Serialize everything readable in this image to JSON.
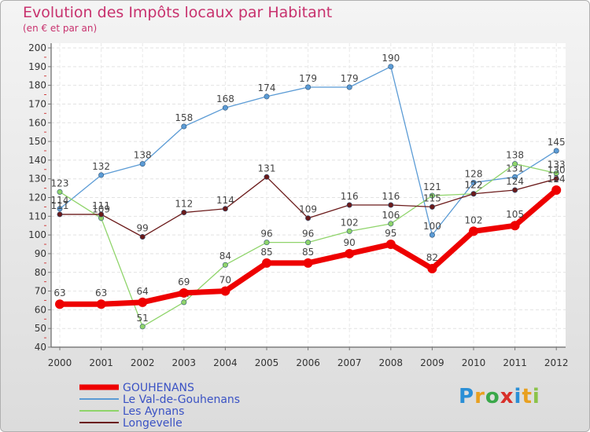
{
  "chart_data": {
    "type": "line",
    "title": "Evolution des Impôts locaux par Habitant",
    "subtitle": "(en € et par an)",
    "xlabel": "",
    "ylabel": "",
    "ylim": [
      40,
      200
    ],
    "ytick_step": 10,
    "categories": [
      "2000",
      "2001",
      "2002",
      "2003",
      "2004",
      "2005",
      "2006",
      "2007",
      "2008",
      "2009",
      "2010",
      "2011",
      "2012"
    ],
    "series": [
      {
        "name": "GOUHENANS",
        "color": "#ee0000",
        "bold": true,
        "values": [
          63,
          63,
          64,
          69,
          70,
          85,
          85,
          90,
          95,
          82,
          102,
          105,
          124
        ]
      },
      {
        "name": "Le Val-de-Gouhenans",
        "color": "#5b9bd5",
        "bold": false,
        "values": [
          114,
          132,
          138,
          158,
          168,
          174,
          179,
          179,
          190,
          100,
          128,
          131,
          145
        ]
      },
      {
        "name": "Les Aynans",
        "color": "#8fd46a",
        "bold": false,
        "values": [
          123,
          109,
          51,
          64,
          84,
          96,
          96,
          102,
          106,
          121,
          122,
          138,
          133
        ]
      },
      {
        "name": "Longevelle",
        "color": "#6b1a1a",
        "bold": false,
        "values": [
          111,
          111,
          99,
          112,
          114,
          131,
          109,
          116,
          116,
          115,
          122,
          124,
          130
        ]
      }
    ]
  },
  "logo": {
    "p": "P",
    "r": "r",
    "o": "o",
    "x": "x",
    "i": "i",
    "t": "t",
    "i2": "i"
  }
}
